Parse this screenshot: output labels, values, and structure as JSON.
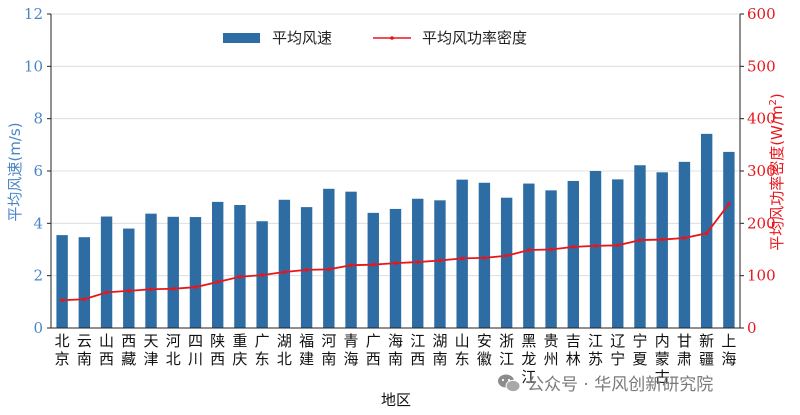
{
  "chart_data": {
    "type": "bar",
    "categories": [
      "北京",
      "云南",
      "山西",
      "西藏",
      "天津",
      "河北",
      "四川",
      "陕西",
      "重庆",
      "广东",
      "湖北",
      "福建",
      "河南",
      "青海",
      "广西",
      "海南",
      "江西",
      "湖南",
      "山东",
      "安徽",
      "浙江",
      "黑龙江",
      "贵州",
      "吉林",
      "江苏",
      "辽宁",
      "宁夏",
      "内蒙古",
      "甘肃",
      "新疆",
      "上海"
    ],
    "series": [
      {
        "name": "平均风速",
        "type": "bar",
        "axis": "left",
        "color": "#2E6DA4",
        "values": [
          3.55,
          3.47,
          4.26,
          3.8,
          4.37,
          4.25,
          4.24,
          4.82,
          4.7,
          4.08,
          4.9,
          4.62,
          5.32,
          5.21,
          4.4,
          4.55,
          4.94,
          4.88,
          5.67,
          5.55,
          4.98,
          5.52,
          5.26,
          5.62,
          6.0,
          5.68,
          6.22,
          5.95,
          6.35,
          7.42,
          6.73
        ]
      },
      {
        "name": "平均风功率密度",
        "type": "line",
        "axis": "right",
        "color": "#E8161B",
        "values": [
          53,
          55,
          68,
          71,
          74,
          75,
          78,
          88,
          98,
          101,
          107,
          111,
          112,
          120,
          121,
          124,
          126,
          129,
          133,
          134,
          138,
          149,
          150,
          155,
          157,
          158,
          168,
          169,
          172,
          181,
          237
        ]
      }
    ],
    "xlabel": "地区",
    "ylabel_left": "平均风速(m/s)",
    "ylabel_right_main": "平均风功率密度(W/m",
    "ylabel_right_sup": "2",
    "ylabel_right_end": ")",
    "ylim_left": [
      0,
      12
    ],
    "ylim_right": [
      0,
      600
    ],
    "yticks_left": [
      "0",
      "2",
      "4",
      "6",
      "8",
      "10",
      "12"
    ],
    "yticks_right": [
      "0",
      "100",
      "200",
      "300",
      "400",
      "500",
      "600"
    ],
    "grid": "horizontal",
    "legend_position": "top-center",
    "left_axis_color": "#4A86C5",
    "right_axis_color": "#E8161B"
  },
  "watermark": {
    "icon": "wechat-icon",
    "text": "公众号 · 华风创新研究院"
  }
}
